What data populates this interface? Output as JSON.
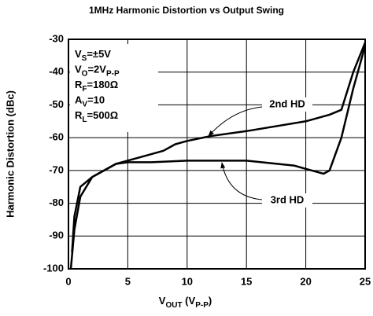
{
  "chart_data": {
    "type": "line",
    "title": "1MHz Harmonic Distortion vs Output Swing",
    "ylabel": "Harmonic Distortion (dBc)",
    "xlabel": [
      "V",
      "OUT",
      " (V",
      "P-P",
      ")"
    ],
    "annotations": [
      [
        "V",
        "S",
        "=±5V"
      ],
      [
        "V",
        "O",
        "=2V",
        "P-P",
        ""
      ],
      [
        "R",
        "F",
        "=180Ω"
      ],
      [
        "A",
        "V",
        "=10"
      ],
      [
        "R",
        "L",
        "=500Ω"
      ]
    ],
    "xlim": [
      0,
      25
    ],
    "xticks": [
      0,
      5,
      10,
      15,
      20,
      25
    ],
    "ylim": [
      -100,
      -30
    ],
    "yticks": [
      -100,
      -90,
      -80,
      -70,
      -60,
      -50,
      -40,
      -30
    ],
    "grid": true,
    "series": [
      {
        "name": "2nd HD",
        "color": "#000000",
        "x": [
          0.2,
          0.5,
          1,
          2,
          3,
          4,
          5,
          6,
          8,
          9,
          10,
          12,
          15,
          20,
          22,
          23,
          24,
          25
        ],
        "values": [
          -100,
          -88,
          -78,
          -72,
          -70,
          -68,
          -67,
          -66,
          -64,
          -62,
          -61,
          -59.5,
          -58,
          -55,
          -53,
          -51.5,
          -40,
          -31
        ]
      },
      {
        "name": "3rd HD",
        "color": "#000000",
        "x": [
          0.3,
          0.5,
          1,
          2,
          3,
          4,
          5,
          7,
          10,
          15,
          19,
          20,
          21,
          21.5,
          22,
          23,
          24,
          25
        ],
        "values": [
          -95,
          -84,
          -75,
          -72,
          -70,
          -68,
          -67.5,
          -67.5,
          -67,
          -67,
          -68.5,
          -69.5,
          -70.5,
          -71,
          -70,
          -60,
          -45,
          -32
        ]
      }
    ]
  }
}
